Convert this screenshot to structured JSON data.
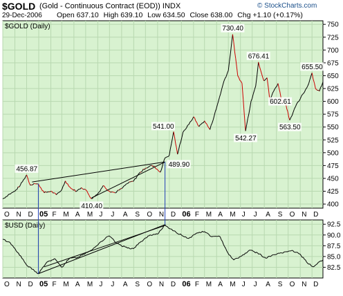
{
  "header": {
    "symbol": "$GOLD",
    "description": "(Gold - Continuous Contract (EOD))",
    "exchange": "INDX",
    "date": "29-Dec-2006",
    "open_label": "Open",
    "open": "637.10",
    "high_label": "High",
    "high": "639.10",
    "low_label": "Low",
    "low": "634.50",
    "close_label": "Close",
    "close": "638.00",
    "chg_label": "Chg",
    "chg": "+1.10 (+0.17%)",
    "watermark": "© StockCharts.com"
  },
  "colors": {
    "panel_bg": "#d8f2d0",
    "grid": "#b8d8b0",
    "price_line": "#000000",
    "down_segment": "#cc0000",
    "marker_line": "#1f3fb5"
  },
  "chart_data": [
    {
      "type": "line",
      "title": "$GOLD (Daily)",
      "y_axis_side": "right",
      "ylim": [
        392,
        757
      ],
      "yticks": [
        400,
        425,
        450,
        475,
        500,
        525,
        550,
        575,
        600,
        625,
        650,
        675,
        700,
        725,
        750
      ],
      "x_months": [
        "O",
        "N",
        "D",
        "05",
        "F",
        "M",
        "A",
        "M",
        "J",
        "J",
        "A",
        "S",
        "O",
        "N",
        "D",
        "06",
        "F",
        "M",
        "A",
        "M",
        "J",
        "J",
        "A",
        "S",
        "O",
        "N",
        "D"
      ],
      "x_start": "2004-10-01",
      "x_end": "2006-12-29",
      "grid": true,
      "series": [
        {
          "values": [
            [
              "2004-10-01",
              410
            ],
            [
              "2004-10-15",
              418
            ],
            [
              "2004-11-01",
              425
            ],
            [
              "2004-11-15",
              437
            ],
            [
              "2004-12-01",
              456.87
            ],
            [
              "2004-12-10",
              437
            ],
            [
              "2004-12-20",
              440
            ],
            [
              "2005-01-01",
              438
            ],
            [
              "2005-01-15",
              422
            ],
            [
              "2005-02-01",
              425
            ],
            [
              "2005-02-15",
              418
            ],
            [
              "2005-03-01",
              428
            ],
            [
              "2005-03-10",
              445
            ],
            [
              "2005-03-25",
              430
            ],
            [
              "2005-04-08",
              425
            ],
            [
              "2005-04-20",
              432
            ],
            [
              "2005-05-01",
              428
            ],
            [
              "2005-05-16",
              410.4
            ],
            [
              "2005-06-01",
              420
            ],
            [
              "2005-06-15",
              436
            ],
            [
              "2005-07-01",
              425
            ],
            [
              "2005-07-15",
              422
            ],
            [
              "2005-08-01",
              430
            ],
            [
              "2005-08-15",
              440
            ],
            [
              "2005-09-01",
              445
            ],
            [
              "2005-09-15",
              460
            ],
            [
              "2005-10-01",
              470
            ],
            [
              "2005-10-15",
              475
            ],
            [
              "2005-10-25",
              472
            ],
            [
              "2005-11-08",
              462
            ],
            [
              "2005-11-20",
              489.9
            ],
            [
              "2005-12-01",
              495
            ],
            [
              "2005-12-12",
              541.0
            ],
            [
              "2005-12-22",
              497
            ],
            [
              "2006-01-05",
              540
            ],
            [
              "2006-01-20",
              555
            ],
            [
              "2006-02-01",
              570
            ],
            [
              "2006-02-15",
              551
            ],
            [
              "2006-03-01",
              562
            ],
            [
              "2006-03-15",
              545
            ],
            [
              "2006-03-31",
              585
            ],
            [
              "2006-04-20",
              640
            ],
            [
              "2006-05-01",
              660
            ],
            [
              "2006-05-12",
              730.4
            ],
            [
              "2006-05-25",
              650
            ],
            [
              "2006-06-05",
              635
            ],
            [
              "2006-06-14",
              542.27
            ],
            [
              "2006-06-28",
              600
            ],
            [
              "2006-07-10",
              630
            ],
            [
              "2006-07-17",
              676.41
            ],
            [
              "2006-07-31",
              640
            ],
            [
              "2006-08-08",
              646
            ],
            [
              "2006-08-15",
              602.61
            ],
            [
              "2006-08-25",
              620
            ],
            [
              "2006-09-05",
              635
            ],
            [
              "2006-09-15",
              600
            ],
            [
              "2006-09-25",
              595
            ],
            [
              "2006-10-05",
              563.5
            ],
            [
              "2006-10-20",
              590
            ],
            [
              "2006-11-01",
              605
            ],
            [
              "2006-11-20",
              630
            ],
            [
              "2006-12-01",
              655.5
            ],
            [
              "2006-12-10",
              625
            ],
            [
              "2006-12-20",
              620
            ],
            [
              "2006-12-29",
              638
            ]
          ]
        }
      ],
      "annotations": [
        {
          "label": "456.87",
          "x": "2004-12-01",
          "y": 456.87
        },
        {
          "label": "410.40",
          "x": "2005-05-16",
          "y": 410.4
        },
        {
          "label": "489.90",
          "x": "2005-11-20",
          "y": 489.9
        },
        {
          "label": "541.00",
          "x": "2005-12-12",
          "y": 541.0
        },
        {
          "label": "730.40",
          "x": "2006-05-12",
          "y": 730.4
        },
        {
          "label": "542.27",
          "x": "2006-06-14",
          "y": 542.27
        },
        {
          "label": "676.41",
          "x": "2006-07-17",
          "y": 676.41
        },
        {
          "label": "602.61",
          "x": "2006-08-15",
          "y": 602.61
        },
        {
          "label": "563.50",
          "x": "2006-10-05",
          "y": 563.5
        },
        {
          "label": "655.50",
          "x": "2006-12-01",
          "y": 655.5
        }
      ],
      "trendlines": [
        {
          "from": [
            "2004-12-15",
            443
          ],
          "to": [
            "2005-11-20",
            482
          ]
        },
        {
          "from": [
            "2005-05-16",
            412
          ],
          "to": [
            "2005-11-20",
            482
          ]
        }
      ],
      "vertical_markers": [
        "2004-12-31",
        "2005-11-20"
      ]
    },
    {
      "type": "line",
      "title": "$USD (Daily)",
      "y_axis_side": "right",
      "ylim": [
        80,
        93.5
      ],
      "yticks": [
        82.5,
        85.0,
        87.5,
        90.0,
        92.5
      ],
      "x_months": [
        "O",
        "N",
        "D",
        "05",
        "F",
        "M",
        "A",
        "M",
        "J",
        "J",
        "A",
        "S",
        "O",
        "N",
        "D",
        "06",
        "F",
        "M",
        "A",
        "M",
        "J",
        "J",
        "A",
        "S",
        "O",
        "N",
        "D"
      ],
      "x_start": "2004-10-01",
      "x_end": "2006-12-29",
      "grid": true,
      "series": [
        {
          "values": [
            [
              "2004-10-01",
              89.0
            ],
            [
              "2004-10-20",
              88.2
            ],
            [
              "2004-11-10",
              85.8
            ],
            [
              "2004-12-01",
              83.0
            ],
            [
              "2004-12-31",
              81.0
            ],
            [
              "2005-01-20",
              83.5
            ],
            [
              "2005-02-10",
              84.5
            ],
            [
              "2005-03-01",
              82.5
            ],
            [
              "2005-03-20",
              84.5
            ],
            [
              "2005-04-10",
              84.8
            ],
            [
              "2005-05-01",
              85.8
            ],
            [
              "2005-05-20",
              86.8
            ],
            [
              "2005-06-10",
              88.5
            ],
            [
              "2005-06-30",
              89.8
            ],
            [
              "2005-07-20",
              88.0
            ],
            [
              "2005-08-10",
              87.2
            ],
            [
              "2005-08-31",
              86.8
            ],
            [
              "2005-09-20",
              88.5
            ],
            [
              "2005-10-10",
              89.8
            ],
            [
              "2005-11-01",
              90.2
            ],
            [
              "2005-11-20",
              92.4
            ],
            [
              "2005-12-10",
              91.0
            ],
            [
              "2006-01-01",
              90.0
            ],
            [
              "2006-01-20",
              89.2
            ],
            [
              "2006-02-10",
              90.5
            ],
            [
              "2006-03-01",
              90.8
            ],
            [
              "2006-03-20",
              89.6
            ],
            [
              "2006-04-10",
              89.6
            ],
            [
              "2006-04-30",
              85.8
            ],
            [
              "2006-05-15",
              84.2
            ],
            [
              "2006-06-05",
              85.2
            ],
            [
              "2006-06-25",
              86.5
            ],
            [
              "2006-07-15",
              85.8
            ],
            [
              "2006-08-05",
              84.6
            ],
            [
              "2006-08-25",
              85.4
            ],
            [
              "2006-09-15",
              85.8
            ],
            [
              "2006-10-10",
              86.4
            ],
            [
              "2006-10-31",
              85.6
            ],
            [
              "2006-11-20",
              83.4
            ],
            [
              "2006-12-05",
              82.6
            ],
            [
              "2006-12-20",
              83.8
            ],
            [
              "2006-12-29",
              84.2
            ]
          ]
        }
      ],
      "trendlines": [
        {
          "from": [
            "2004-12-31",
            81.0
          ],
          "to": [
            "2005-11-20",
            92.4
          ]
        },
        {
          "from": [
            "2005-01-15",
            82.6
          ],
          "to": [
            "2005-11-20",
            92.2
          ]
        }
      ]
    }
  ]
}
